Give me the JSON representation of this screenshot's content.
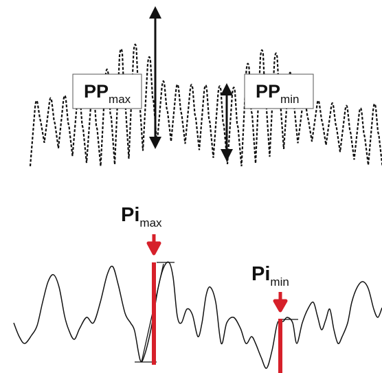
{
  "top_panel": {
    "label_max": {
      "main": "PP",
      "sub": "max"
    },
    "label_min": {
      "main": "PP",
      "sub": "min"
    }
  },
  "bottom_panel": {
    "label_max": {
      "main": "Pi",
      "sub": "max"
    },
    "label_min": {
      "main": "Pi",
      "sub": "min"
    }
  },
  "colors": {
    "trace": "#111111",
    "marker": "#d6202a",
    "label_box_border": "#555555",
    "background": "#ffffff"
  }
}
